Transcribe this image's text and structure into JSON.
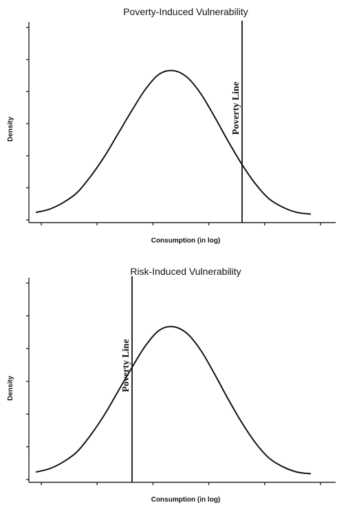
{
  "chart_data": [
    {
      "type": "line",
      "title": "Poverty-Induced Vulnerability",
      "xlabel": "Consumption (in log)",
      "ylabel": "Density",
      "series": [
        {
          "x": [
            0,
            0.05,
            0.1,
            0.15,
            0.2,
            0.25,
            0.3,
            0.35,
            0.4,
            0.45,
            0.5,
            0.55,
            0.6,
            0.65,
            0.7,
            0.75,
            0.8,
            0.85,
            0.9,
            0.95,
            1.0
          ],
          "values": [
            0.02,
            0.04,
            0.08,
            0.14,
            0.24,
            0.36,
            0.5,
            0.64,
            0.77,
            0.86,
            0.88,
            0.84,
            0.74,
            0.6,
            0.45,
            0.31,
            0.19,
            0.1,
            0.05,
            0.02,
            0.01
          ]
        }
      ],
      "vertical_line": {
        "label": "Poverty Line",
        "x": 0.75
      },
      "xlim": [
        0,
        1
      ],
      "ylim": [
        0,
        1
      ],
      "grid": false,
      "legend": "none"
    },
    {
      "type": "line",
      "title": "Risk-Induced Vulnerability",
      "xlabel": "Consumption (in log)",
      "ylabel": "Density",
      "series": [
        {
          "x": [
            0,
            0.05,
            0.1,
            0.15,
            0.2,
            0.25,
            0.3,
            0.35,
            0.4,
            0.45,
            0.5,
            0.55,
            0.6,
            0.65,
            0.7,
            0.75,
            0.8,
            0.85,
            0.9,
            0.95,
            1.0
          ],
          "values": [
            0.02,
            0.04,
            0.08,
            0.14,
            0.24,
            0.36,
            0.5,
            0.64,
            0.77,
            0.86,
            0.88,
            0.84,
            0.74,
            0.6,
            0.45,
            0.31,
            0.19,
            0.1,
            0.05,
            0.02,
            0.01
          ]
        }
      ],
      "vertical_line": {
        "label": "Poverty Line",
        "x": 0.35
      },
      "xlim": [
        0,
        1
      ],
      "ylim": [
        0,
        1
      ],
      "grid": false,
      "legend": "none"
    }
  ]
}
